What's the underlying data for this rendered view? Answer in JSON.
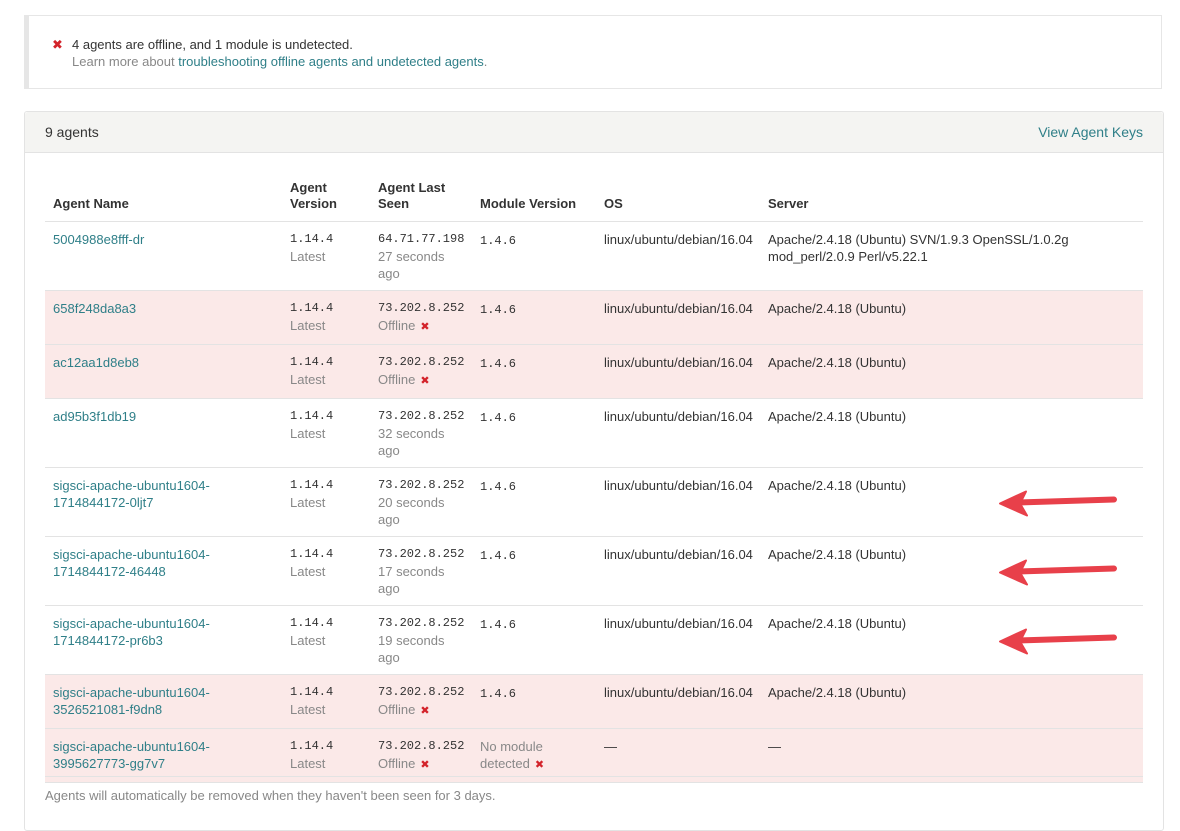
{
  "alert": {
    "message": "4 agents are offline, and 1 module is undetected.",
    "learn_prefix": "Learn more about ",
    "learn_link": "troubleshooting offline agents and undetected agents",
    "learn_suffix": ".",
    "error_color": "#d3232a",
    "icon": "x-icon"
  },
  "panel": {
    "count_label": "9 agents",
    "view_keys_label": "View Agent Keys",
    "accent_color": "#2f7f88"
  },
  "table": {
    "columns": [
      "Agent Name",
      "Agent Version",
      "Agent Last Seen",
      "Module Version",
      "OS",
      "Server"
    ],
    "rows": [
      {
        "name": "5004988e8fff-dr",
        "version": "1.14.4",
        "version_note": "Latest",
        "ip": "64.71.77.198",
        "seen": "27 seconds ago",
        "seen_offline": false,
        "module": "1.4.6",
        "module_missing": false,
        "os": "linux/ubuntu/debian/16.04",
        "server": "Apache/2.4.18 (Ubuntu) SVN/1.9.3 OpenSSL/1.0.2g mod_perl/2.0.9 Perl/v5.22.1",
        "offline": false
      },
      {
        "name": "658f248da8a3",
        "version": "1.14.4",
        "version_note": "Latest",
        "ip": "73.202.8.252",
        "seen": "Offline",
        "seen_offline": true,
        "module": "1.4.6",
        "module_missing": false,
        "os": "linux/ubuntu/debian/16.04",
        "server": "Apache/2.4.18 (Ubuntu)",
        "offline": true
      },
      {
        "name": "ac12aa1d8eb8",
        "version": "1.14.4",
        "version_note": "Latest",
        "ip": "73.202.8.252",
        "seen": "Offline",
        "seen_offline": true,
        "module": "1.4.6",
        "module_missing": false,
        "os": "linux/ubuntu/debian/16.04",
        "server": "Apache/2.4.18 (Ubuntu)",
        "offline": true
      },
      {
        "name": "ad95b3f1db19",
        "version": "1.14.4",
        "version_note": "Latest",
        "ip": "73.202.8.252",
        "seen": "32 seconds ago",
        "seen_offline": false,
        "module": "1.4.6",
        "module_missing": false,
        "os": "linux/ubuntu/debian/16.04",
        "server": "Apache/2.4.18 (Ubuntu)",
        "offline": false
      },
      {
        "name": "sigsci-apache-ubuntu1604-1714844172-0ljt7",
        "version": "1.14.4",
        "version_note": "Latest",
        "ip": "73.202.8.252",
        "seen": "20 seconds ago",
        "seen_offline": false,
        "module": "1.4.6",
        "module_missing": false,
        "os": "linux/ubuntu/debian/16.04",
        "server": "Apache/2.4.18 (Ubuntu)",
        "offline": false
      },
      {
        "name": "sigsci-apache-ubuntu1604-1714844172-46448",
        "version": "1.14.4",
        "version_note": "Latest",
        "ip": "73.202.8.252",
        "seen": "17 seconds ago",
        "seen_offline": false,
        "module": "1.4.6",
        "module_missing": false,
        "os": "linux/ubuntu/debian/16.04",
        "server": "Apache/2.4.18 (Ubuntu)",
        "offline": false
      },
      {
        "name": "sigsci-apache-ubuntu1604-1714844172-pr6b3",
        "version": "1.14.4",
        "version_note": "Latest",
        "ip": "73.202.8.252",
        "seen": "19 seconds ago",
        "seen_offline": false,
        "module": "1.4.6",
        "module_missing": false,
        "os": "linux/ubuntu/debian/16.04",
        "server": "Apache/2.4.18 (Ubuntu)",
        "offline": false
      },
      {
        "name": "sigsci-apache-ubuntu1604-3526521081-f9dn8",
        "version": "1.14.4",
        "version_note": "Latest",
        "ip": "73.202.8.252",
        "seen": "Offline",
        "seen_offline": true,
        "module": "1.4.6",
        "module_missing": false,
        "os": "linux/ubuntu/debian/16.04",
        "server": "Apache/2.4.18 (Ubuntu)",
        "offline": true
      },
      {
        "name": "sigsci-apache-ubuntu1604-3995627773-gg7v7",
        "version": "1.14.4",
        "version_note": "Latest",
        "ip": "73.202.8.252",
        "seen": "Offline",
        "seen_offline": true,
        "module": "No module detected",
        "module_missing": true,
        "os": "—",
        "server": "—",
        "offline": true
      }
    ],
    "offline_row_color": "#fbe9e8"
  },
  "annotations": {
    "arrow_color": "#e8404a",
    "arrow_icon": "red-arrow-icon",
    "arrow_rows": [
      "sigsci-apache-ubuntu1604-1714844172-0ljt7",
      "sigsci-apache-ubuntu1604-1714844172-46448",
      "sigsci-apache-ubuntu1604-1714844172-pr6b3"
    ]
  },
  "footnote": "Agents will automatically be removed when they haven't been seen for 3 days."
}
